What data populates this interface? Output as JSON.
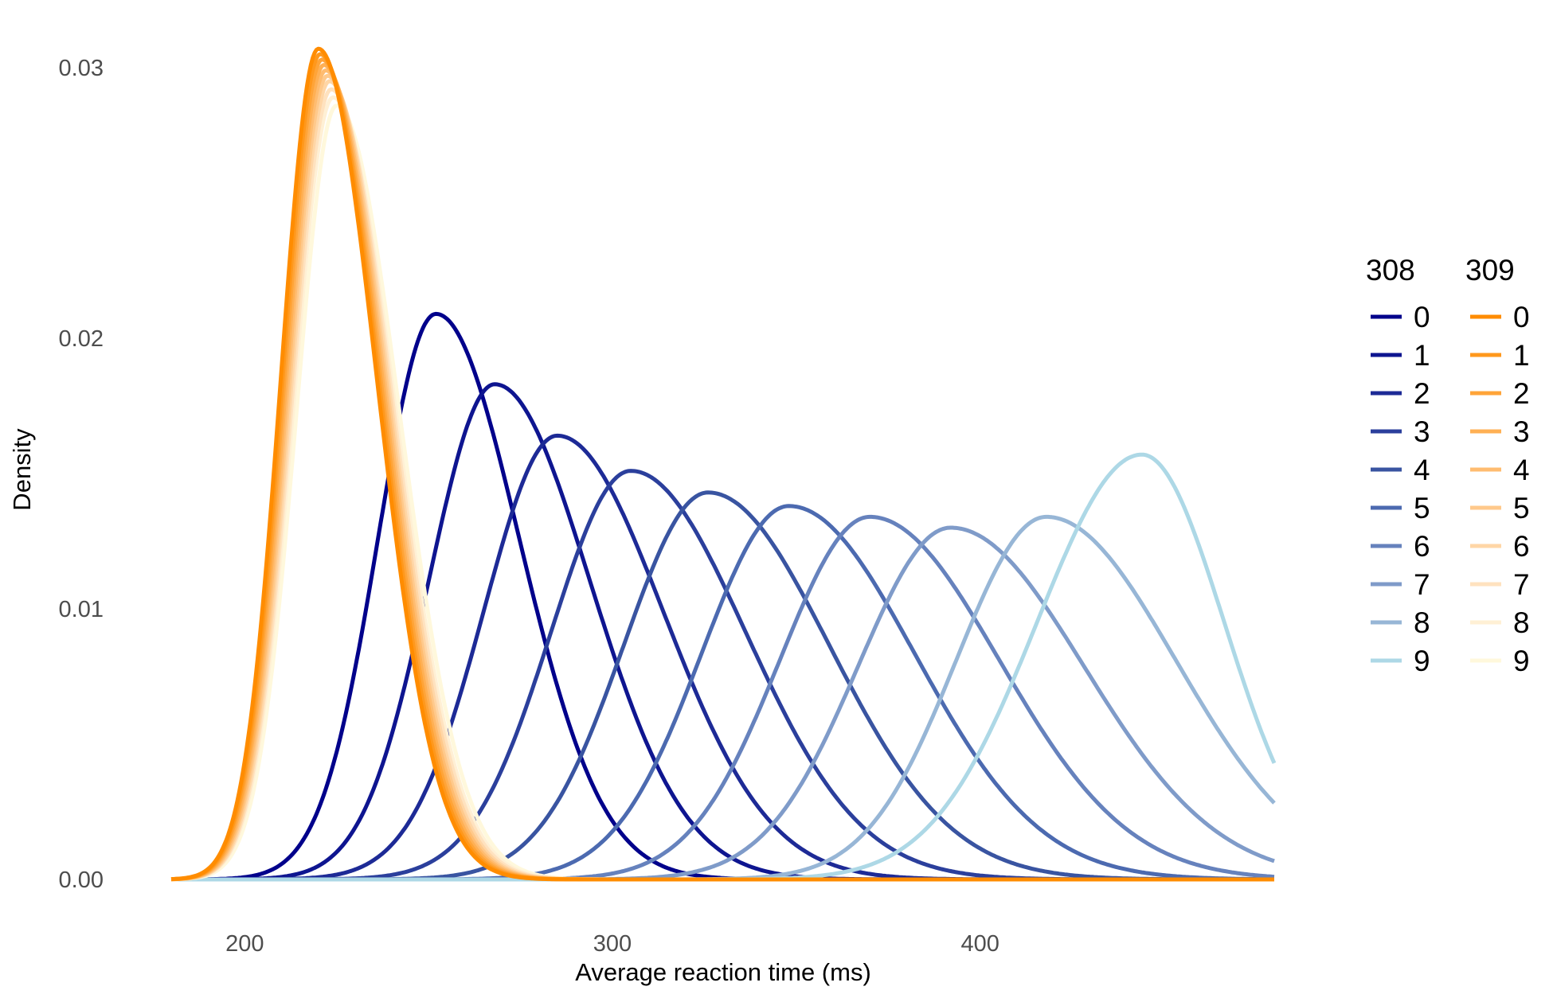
{
  "chart_data": {
    "type": "line",
    "xlabel": "Average reaction time (ms)",
    "ylabel": "Density",
    "xlim": [
      180,
      480
    ],
    "ylim": [
      0,
      0.03
    ],
    "x_ticks": [
      {
        "value": 200,
        "label": "200"
      },
      {
        "value": 300,
        "label": "300"
      },
      {
        "value": 400,
        "label": "400"
      }
    ],
    "y_ticks": [
      {
        "value": 0,
        "label": "0.00"
      },
      {
        "value": 0.01,
        "label": "0.01"
      },
      {
        "value": 0.02,
        "label": "0.02"
      },
      {
        "value": 0.03,
        "label": "0.03"
      }
    ],
    "grid": false,
    "legend_position": "right",
    "groups": [
      {
        "title": "308",
        "series": [
          {
            "name": "0",
            "color": "#00008b",
            "peak_x": 252,
            "peak_y": 0.0209
          },
          {
            "name": "1",
            "color": "#0e1590",
            "peak_x": 268,
            "peak_y": 0.0183
          },
          {
            "name": "2",
            "color": "#1d2a96",
            "peak_x": 285,
            "peak_y": 0.0164
          },
          {
            "name": "3",
            "color": "#2b3f9c",
            "peak_x": 305,
            "peak_y": 0.0151
          },
          {
            "name": "4",
            "color": "#3954a1",
            "peak_x": 326,
            "peak_y": 0.0143
          },
          {
            "name": "5",
            "color": "#4c6ab0",
            "peak_x": 348,
            "peak_y": 0.0138
          },
          {
            "name": "6",
            "color": "#6682bd",
            "peak_x": 370,
            "peak_y": 0.0134
          },
          {
            "name": "7",
            "color": "#7f9bc9",
            "peak_x": 392,
            "peak_y": 0.013
          },
          {
            "name": "8",
            "color": "#97b6d6",
            "peak_x": 418,
            "peak_y": 0.0134
          },
          {
            "name": "9",
            "color": "#add8e6",
            "peak_x": 444,
            "peak_y": 0.0157
          }
        ]
      },
      {
        "title": "309",
        "series": [
          {
            "name": "0",
            "color": "#ff8c00",
            "peak_x": 220,
            "peak_y": 0.0307
          },
          {
            "name": "1",
            "color": "#ff981c",
            "peak_x": 220.5,
            "peak_y": 0.0305
          },
          {
            "name": "2",
            "color": "#ffa438",
            "peak_x": 221,
            "peak_y": 0.0303
          },
          {
            "name": "3",
            "color": "#ffb054",
            "peak_x": 221.5,
            "peak_y": 0.0301
          },
          {
            "name": "4",
            "color": "#ffbc70",
            "peak_x": 222,
            "peak_y": 0.0299
          },
          {
            "name": "5",
            "color": "#ffc98b",
            "peak_x": 222.5,
            "peak_y": 0.0297
          },
          {
            "name": "6",
            "color": "#ffd6a6",
            "peak_x": 223,
            "peak_y": 0.0295
          },
          {
            "name": "7",
            "color": "#ffe2bf",
            "peak_x": 223.5,
            "peak_y": 0.0292
          },
          {
            "name": "8",
            "color": "#fff0d5",
            "peak_x": 224,
            "peak_y": 0.0289
          },
          {
            "name": "9",
            "color": "#fff8dc",
            "peak_x": 225,
            "peak_y": 0.0286
          }
        ]
      }
    ]
  }
}
